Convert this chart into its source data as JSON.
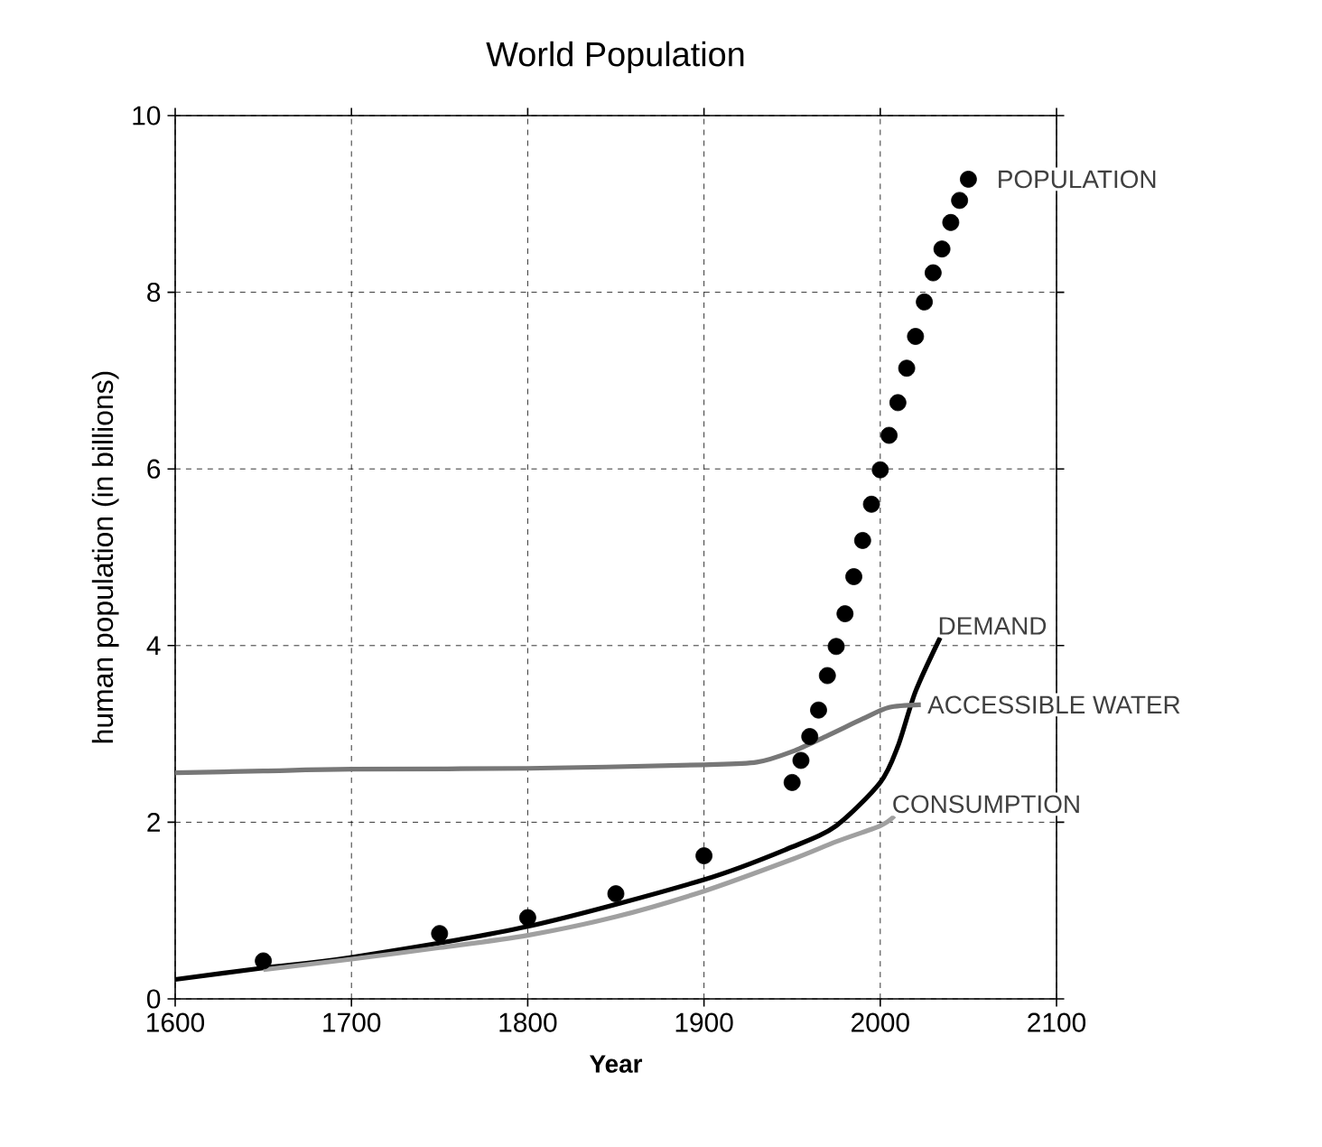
{
  "chart_data": {
    "type": "line",
    "title": "World Population",
    "xlabel": "Year",
    "ylabel": "human population   (in billions)",
    "xlim": [
      1600,
      2100
    ],
    "ylim": [
      0,
      10
    ],
    "xticks": [
      1600,
      1700,
      1800,
      1900,
      2000,
      2100
    ],
    "yticks": [
      0,
      2,
      4,
      6,
      8,
      10
    ],
    "grid": true,
    "series": [
      {
        "name": "POPULATION",
        "type": "scatter",
        "color": "#000000",
        "x": [
          1650,
          1750,
          1800,
          1850,
          1900,
          1950,
          1955,
          1960,
          1965,
          1970,
          1975,
          1980,
          1985,
          1990,
          1995,
          2000,
          2005,
          2010,
          2015,
          2020,
          2025,
          2030,
          2035,
          2040,
          2045,
          2050
        ],
        "values": [
          0.43,
          0.74,
          0.92,
          1.19,
          1.62,
          2.45,
          2.7,
          2.97,
          3.27,
          3.66,
          3.99,
          4.36,
          4.78,
          5.19,
          5.6,
          5.99,
          6.38,
          6.75,
          7.14,
          7.5,
          7.89,
          8.22,
          8.49,
          8.79,
          9.04,
          9.28
        ]
      },
      {
        "name": "DEMAND",
        "color": "#000000",
        "x": [
          1600,
          1650,
          1700,
          1800,
          1900,
          1950,
          1975,
          2000,
          2010,
          2020,
          2034
        ],
        "values": [
          0.22,
          0.35,
          0.47,
          0.82,
          1.35,
          1.72,
          1.96,
          2.45,
          2.86,
          3.48,
          4.09
        ]
      },
      {
        "name": "ACCESSIBLE WATER",
        "color": "#777777",
        "x": [
          1600,
          1650,
          1700,
          1800,
          1900,
          1930,
          1950,
          1970,
          1990,
          2005,
          2023
        ],
        "values": [
          2.56,
          2.58,
          2.6,
          2.61,
          2.65,
          2.68,
          2.8,
          2.98,
          3.17,
          3.3,
          3.33
        ]
      },
      {
        "name": "CONSUMPTION",
        "color": "#a0a0a0",
        "x": [
          1650,
          1700,
          1750,
          1800,
          1850,
          1900,
          1950,
          1975,
          2000,
          2008
        ],
        "values": [
          0.33,
          0.45,
          0.58,
          0.72,
          0.93,
          1.22,
          1.58,
          1.78,
          1.96,
          2.07
        ]
      }
    ]
  }
}
